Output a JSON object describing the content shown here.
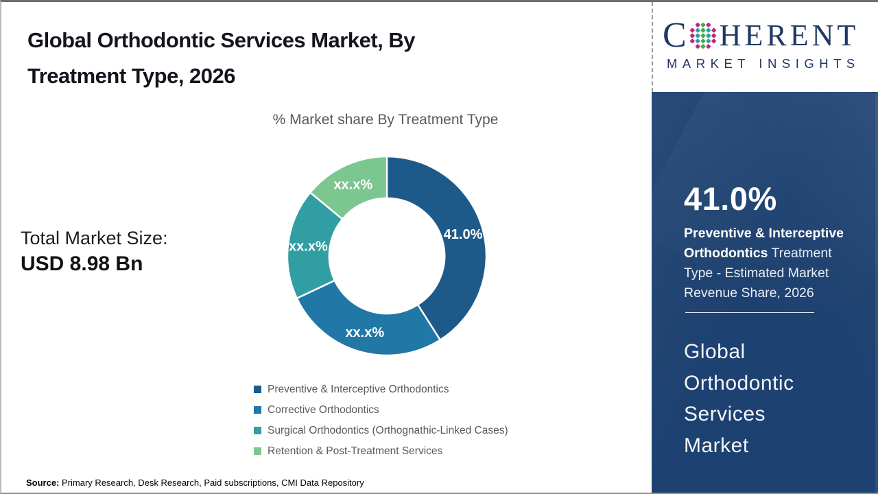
{
  "page": {
    "title": "Global Orthodontic Services Market, By Treatment Type, 2026"
  },
  "left_panel": {
    "total_market_size_label": "Total Market Size:",
    "total_market_size_value": "USD 8.98 Bn"
  },
  "chart_data": {
    "type": "pie",
    "subtype": "donut",
    "title": "% Market share By Treatment Type",
    "categories": [
      "Preventive & Interceptive Orthodontics",
      "Corrective Orthodontics",
      "Surgical Orthodontics (Orthognathic-Linked Cases)",
      "Retention & Post-Treatment Services"
    ],
    "values": [
      41.0,
      27.0,
      18.0,
      14.0
    ],
    "value_labels": [
      "41.0%",
      "xx.x%",
      "xx.x%",
      "xx.x%"
    ],
    "colors": [
      "#1e5a89",
      "#2177a6",
      "#319ea3",
      "#7cc690"
    ],
    "start_angle_deg": 0,
    "direction": "clockwise",
    "inner_radius_ratio": 0.58,
    "legend_position": "bottom"
  },
  "source": {
    "label": "Source:",
    "text": " Primary Research, Desk Research, Paid subscriptions, CMI Data Repository"
  },
  "sidebar": {
    "logo": {
      "first_letter": "C",
      "rest_letters": "HERENT",
      "subtitle": "MARKET INSIGHTS",
      "navy": "#1f3864",
      "dot_colors": {
        "green": "#3fae49",
        "teal": "#2e9ca6",
        "magenta": "#c2267d"
      }
    },
    "stat": {
      "value": "41.0%",
      "bold_text": "Preventive & Interceptive Orthodontics",
      "regular_text": " Treatment Type - Estimated Market Revenue Share, 2026"
    },
    "market_name_lines": [
      "Global",
      "Orthodontic",
      "Services",
      "Market"
    ],
    "background_color": "#1d4170"
  },
  "theme": {
    "title_color": "#14141d",
    "muted_text_color": "#595959",
    "slice_label_color": "#ffffff"
  }
}
